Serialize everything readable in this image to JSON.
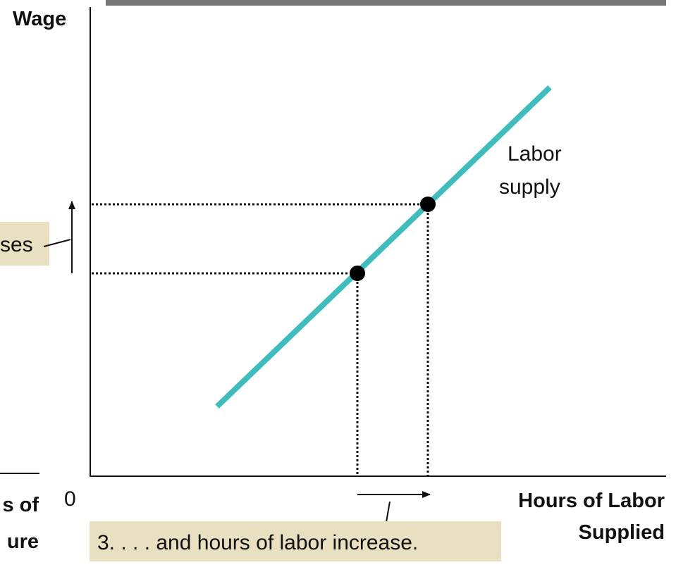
{
  "axes": {
    "y_label": "Wage",
    "x_label": [
      "Hours of Labor",
      "Supplied"
    ],
    "origin": "0"
  },
  "curve_label": [
    "Labor",
    "supply"
  ],
  "annotations": {
    "wage_note": "ses",
    "hours_note": "3. . . . and hours of labor increase."
  },
  "cropped_left": [
    "s of",
    "ure"
  ]
}
